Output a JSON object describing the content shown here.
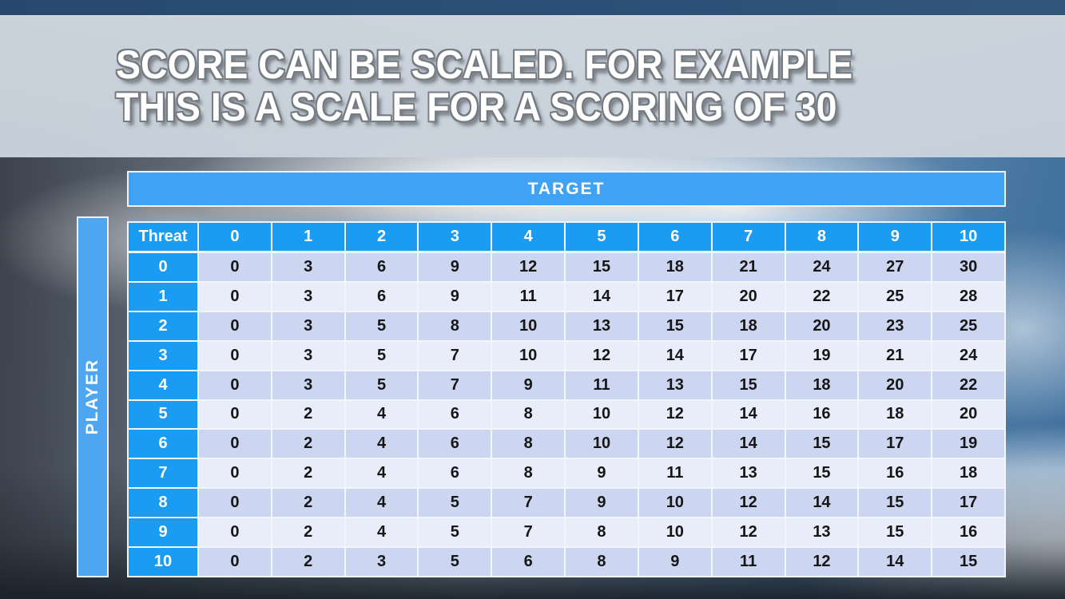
{
  "slide": {
    "title_line1": "SCORE CAN BE SCALED. FOR EXAMPLE",
    "title_line2": "THIS IS A SCALE FOR A SCORING OF 30"
  },
  "table": {
    "top_axis_label": "TARGET",
    "left_axis_label": "PLAYER",
    "corner_header": "Threat",
    "column_headers": [
      "0",
      "1",
      "2",
      "3",
      "4",
      "5",
      "6",
      "7",
      "8",
      "9",
      "10"
    ],
    "row_headers": [
      "0",
      "1",
      "2",
      "3",
      "4",
      "5",
      "6",
      "7",
      "8",
      "9",
      "10"
    ],
    "rows": [
      [
        0,
        3,
        6,
        9,
        12,
        15,
        18,
        21,
        24,
        27,
        30
      ],
      [
        0,
        3,
        6,
        9,
        11,
        14,
        17,
        20,
        22,
        25,
        28
      ],
      [
        0,
        3,
        5,
        8,
        10,
        13,
        15,
        18,
        20,
        23,
        25
      ],
      [
        0,
        3,
        5,
        7,
        10,
        12,
        14,
        17,
        19,
        21,
        24
      ],
      [
        0,
        3,
        5,
        7,
        9,
        11,
        13,
        15,
        18,
        20,
        22
      ],
      [
        0,
        2,
        4,
        6,
        8,
        10,
        12,
        14,
        16,
        18,
        20
      ],
      [
        0,
        2,
        4,
        6,
        8,
        10,
        12,
        14,
        15,
        17,
        19
      ],
      [
        0,
        2,
        4,
        6,
        8,
        9,
        11,
        13,
        15,
        16,
        18
      ],
      [
        0,
        2,
        4,
        5,
        7,
        9,
        10,
        12,
        14,
        15,
        17
      ],
      [
        0,
        2,
        4,
        5,
        7,
        8,
        10,
        12,
        13,
        15,
        16
      ],
      [
        0,
        2,
        3,
        5,
        6,
        8,
        9,
        11,
        12,
        14,
        15
      ]
    ]
  },
  "colors": {
    "header_blue": "#1b9cf3",
    "target_blue": "#3fa2f4",
    "player_blue": "#4fa6f0",
    "band_dark": "#ccd6f1",
    "band_light": "#e9edf9",
    "cell_text": "#161616",
    "top_strip": "#2b4a6c",
    "title_band": "#cdd5dd"
  }
}
